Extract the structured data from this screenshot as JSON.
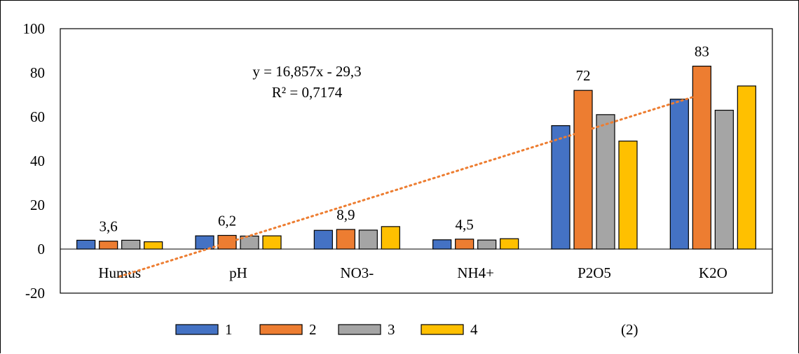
{
  "chart_data": {
    "type": "bar",
    "categories": [
      "Humus",
      "pH",
      "NO3-",
      "NH4+",
      "P2O5",
      "K2O"
    ],
    "series": [
      {
        "name": "1",
        "color": "#4472C4",
        "values": [
          4.0,
          6.0,
          8.5,
          4.2,
          56,
          68
        ]
      },
      {
        "name": "2",
        "color": "#ED7D31",
        "values": [
          3.6,
          6.2,
          8.9,
          4.5,
          72,
          83
        ]
      },
      {
        "name": "3",
        "color": "#A5A5A5",
        "values": [
          4.0,
          5.9,
          8.6,
          4.1,
          61,
          63
        ]
      },
      {
        "name": "4",
        "color": "#FFC000",
        "values": [
          3.3,
          6.0,
          10.2,
          4.7,
          49,
          74
        ]
      }
    ],
    "data_labels": [
      {
        "category": "Humus",
        "series": "2",
        "text": "3,6"
      },
      {
        "category": "pH",
        "series": "2",
        "text": "6,2"
      },
      {
        "category": "NO3-",
        "series": "2",
        "text": "8,9"
      },
      {
        "category": "NH4+",
        "series": "2",
        "text": "4,5"
      },
      {
        "category": "P2O5",
        "series": "2",
        "text": "72"
      },
      {
        "category": "K2O",
        "series": "2",
        "text": "83"
      }
    ],
    "ylim": [
      -20,
      100
    ],
    "yticks": [
      -20,
      0,
      20,
      40,
      60,
      80,
      100
    ],
    "trendline": {
      "series": "2",
      "type": "linear",
      "slope": 16.857,
      "intercept": -29.3,
      "color": "#ED7D31",
      "equation": "y = 16,857x - 29,3",
      "r2": "R² = 0,7174"
    },
    "legend_position": "bottom",
    "grid": false,
    "annotation": "(2)"
  }
}
